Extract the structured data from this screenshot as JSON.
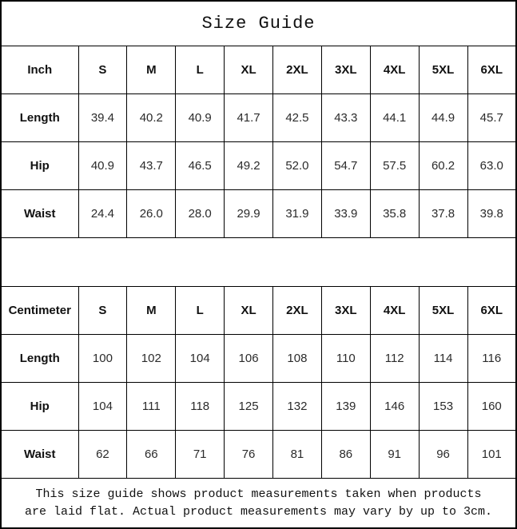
{
  "title": "Size Guide",
  "sizes": [
    "S",
    "M",
    "L",
    "XL",
    "2XL",
    "3XL",
    "4XL",
    "5XL",
    "6XL"
  ],
  "inch": {
    "unit": "Inch",
    "rows": [
      {
        "label": "Length",
        "values": [
          "39.4",
          "40.2",
          "40.9",
          "41.7",
          "42.5",
          "43.3",
          "44.1",
          "44.9",
          "45.7"
        ]
      },
      {
        "label": "Hip",
        "values": [
          "40.9",
          "43.7",
          "46.5",
          "49.2",
          "52.0",
          "54.7",
          "57.5",
          "60.2",
          "63.0"
        ]
      },
      {
        "label": "Waist",
        "values": [
          "24.4",
          "26.0",
          "28.0",
          "29.9",
          "31.9",
          "33.9",
          "35.8",
          "37.8",
          "39.8"
        ]
      }
    ]
  },
  "centimeter": {
    "unit": "Centimeter",
    "rows": [
      {
        "label": "Length",
        "values": [
          "100",
          "102",
          "104",
          "106",
          "108",
          "110",
          "112",
          "114",
          "116"
        ]
      },
      {
        "label": "Hip",
        "values": [
          "104",
          "111",
          "118",
          "125",
          "132",
          "139",
          "146",
          "153",
          "160"
        ]
      },
      {
        "label": "Waist",
        "values": [
          "62",
          "66",
          "71",
          "76",
          "81",
          "86",
          "91",
          "96",
          "101"
        ]
      }
    ]
  },
  "footer": {
    "line1": "This size guide shows product measurements taken when products",
    "line2": "are laid flat. Actual product measurements may vary by up to 3cm."
  }
}
